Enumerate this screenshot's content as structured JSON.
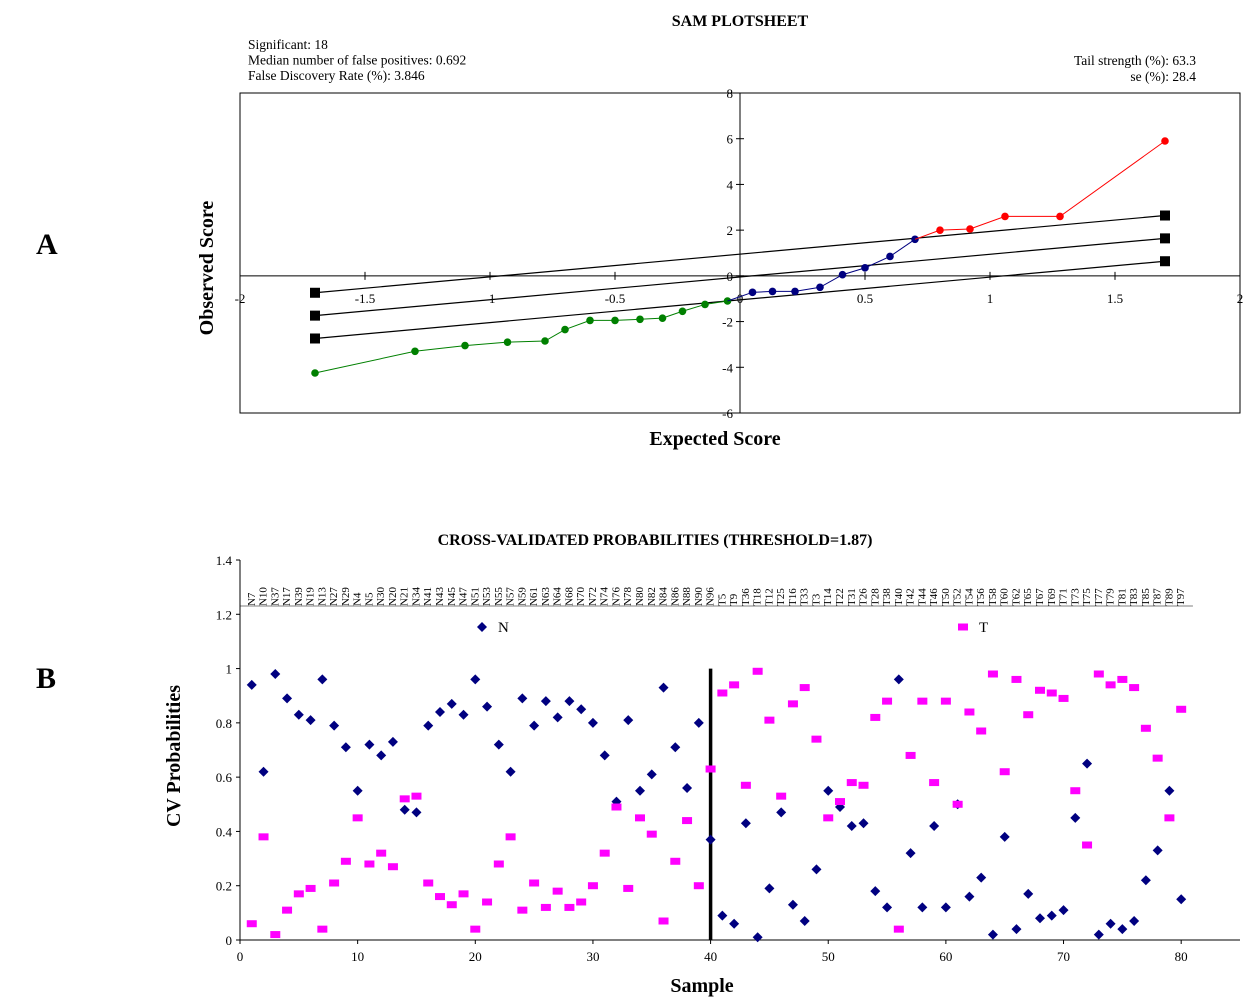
{
  "panel_a_label": "A",
  "panel_b_label": "B",
  "chart_data": [
    {
      "type": "scatter",
      "title": "SAM PLOTSHEET",
      "xlabel": "Expected Score",
      "ylabel": "Observed Score",
      "xlim": [
        -2,
        2
      ],
      "ylim": [
        -6,
        8
      ],
      "x_ticks": [
        -2,
        -1.5,
        -1,
        -0.5,
        0,
        0.5,
        1,
        1.5,
        2
      ],
      "x_tick_labels": [
        "-2",
        "-1.5",
        "-1",
        "-0.5",
        "0",
        "0.5",
        "1",
        "1.5",
        "2"
      ],
      "y_ticks": [
        8,
        6,
        4,
        2,
        0,
        -2,
        -4,
        -6
      ],
      "y_tick_labels": [
        "8",
        "6",
        "4",
        "2",
        "0",
        "-2",
        "-4",
        "-6"
      ],
      "stats_left": [
        "Significant: 18",
        "Median number of false positives: 0.692",
        "False Discovery Rate (%): 3.846"
      ],
      "stats_right": [
        "Tail strength (%): 63.3",
        "se (%): 28.4"
      ],
      "series": [
        {
          "color": "#008000",
          "points": [
            [
              -1.7,
              -4.25
            ],
            [
              -1.3,
              -3.3
            ],
            [
              -1.1,
              -3.05
            ],
            [
              -0.93,
              -2.9
            ],
            [
              -0.78,
              -2.85
            ],
            [
              -0.7,
              -2.35
            ],
            [
              -0.6,
              -1.95
            ],
            [
              -0.5,
              -1.95
            ],
            [
              -0.4,
              -1.9
            ],
            [
              -0.31,
              -1.85
            ],
            [
              -0.23,
              -1.55
            ],
            [
              -0.14,
              -1.25
            ],
            [
              -0.05,
              -1.1
            ]
          ]
        },
        {
          "color": "#000080",
          "points": [
            [
              0.05,
              -0.72
            ],
            [
              0.13,
              -0.68
            ],
            [
              0.22,
              -0.68
            ],
            [
              0.32,
              -0.5
            ],
            [
              0.41,
              0.05
            ],
            [
              0.5,
              0.35
            ],
            [
              0.6,
              0.85
            ],
            [
              0.7,
              1.6
            ]
          ]
        },
        {
          "color": "#ff0000",
          "points": [
            [
              0.8,
              2.0
            ],
            [
              0.92,
              2.05
            ],
            [
              1.06,
              2.6
            ],
            [
              1.28,
              2.6
            ],
            [
              1.7,
              5.9
            ]
          ]
        }
      ],
      "reference_lines": [
        {
          "x": [
            -1.7,
            1.7
          ],
          "y": [
            -0.74,
            2.64
          ]
        },
        {
          "x": [
            -1.7,
            1.7
          ],
          "y": [
            -1.74,
            1.64
          ]
        },
        {
          "x": [
            -1.7,
            1.7
          ],
          "y": [
            -2.74,
            0.64
          ]
        }
      ],
      "colors": {
        "negative": "#008000",
        "null": "#000080",
        "positive": "#ff0000",
        "lines": "#000000"
      }
    },
    {
      "type": "scatter",
      "title": "CROSS-VALIDATED PROBABILITIES (THRESHOLD=1.87)",
      "xlabel": "Sample",
      "ylabel": "CV Probabilities",
      "xlim": [
        0,
        85
      ],
      "ylim": [
        0,
        1.4
      ],
      "x_ticks": [
        0,
        10,
        20,
        30,
        40,
        50,
        60,
        70,
        80
      ],
      "x_tick_labels": [
        "0",
        "10",
        "20",
        "30",
        "40",
        "50",
        "60",
        "70",
        "80"
      ],
      "y_ticks": [
        0,
        0.2,
        0.4,
        0.6,
        0.8,
        1,
        1.2,
        1.4
      ],
      "y_tick_labels": [
        "0",
        "0.2",
        "0.4",
        "0.6",
        "0.8",
        "1",
        "1.2",
        "1.4"
      ],
      "divider_x": 40,
      "sample_labels": [
        "N7",
        "N10",
        "N37",
        "N17",
        "N39",
        "N19",
        "N13",
        "N27",
        "N29",
        "N4",
        "N5",
        "N30",
        "N20",
        "N21",
        "N34",
        "N41",
        "N43",
        "N45",
        "N47",
        "N51",
        "N53",
        "N55",
        "N57",
        "N59",
        "N61",
        "N63",
        "N64",
        "N68",
        "N70",
        "N72",
        "N74",
        "N76",
        "N78",
        "N80",
        "N82",
        "N84",
        "N86",
        "N88",
        "N90",
        "N96",
        "T5",
        "T9",
        "T36",
        "T18",
        "T12",
        "T25",
        "T16",
        "T33",
        "T3",
        "T14",
        "T22",
        "T31",
        "T26",
        "T28",
        "T38",
        "T40",
        "T42",
        "T44",
        "T46",
        "T50",
        "T52",
        "T54",
        "T56",
        "T58",
        "T60",
        "T62",
        "T65",
        "T67",
        "T69",
        "T71",
        "T73",
        "T75",
        "T77",
        "T79",
        "T81",
        "T83",
        "T85",
        "T87",
        "T89",
        "T97"
      ],
      "series": [
        {
          "name": "N",
          "color": "#000080",
          "marker": "diamond",
          "values": [
            0.94,
            0.62,
            0.98,
            0.89,
            0.83,
            0.81,
            0.96,
            0.79,
            0.71,
            0.55,
            0.72,
            0.68,
            0.73,
            0.48,
            0.47,
            0.79,
            0.84,
            0.87,
            0.83,
            0.96,
            0.86,
            0.72,
            0.62,
            0.89,
            0.79,
            0.88,
            0.82,
            0.88,
            0.85,
            0.8,
            0.68,
            0.51,
            0.81,
            0.55,
            0.61,
            0.93,
            0.71,
            0.56,
            0.8,
            0.37,
            0.09,
            0.06,
            0.43,
            0.01,
            0.19,
            0.47,
            0.13,
            0.07,
            0.26,
            0.55,
            0.49,
            0.42,
            0.43,
            0.18,
            0.12,
            0.96,
            0.32,
            0.12,
            0.42,
            0.12,
            0.5,
            0.16,
            0.23,
            0.02,
            0.38,
            0.04,
            0.17,
            0.08,
            0.09,
            0.11,
            0.45,
            0.65,
            0.02,
            0.06,
            0.04,
            0.07,
            0.22,
            0.33,
            0.55,
            0.15
          ]
        },
        {
          "name": "T",
          "color": "#ff00ff",
          "marker": "square",
          "values": [
            0.06,
            0.38,
            0.02,
            0.11,
            0.17,
            0.19,
            0.04,
            0.21,
            0.29,
            0.45,
            0.28,
            0.32,
            0.27,
            0.52,
            0.53,
            0.21,
            0.16,
            0.13,
            0.17,
            0.04,
            0.14,
            0.28,
            0.38,
            0.11,
            0.21,
            0.12,
            0.18,
            0.12,
            0.14,
            0.2,
            0.32,
            0.49,
            0.19,
            0.45,
            0.39,
            0.07,
            0.29,
            0.44,
            0.2,
            0.63,
            0.91,
            0.94,
            0.57,
            0.99,
            0.81,
            0.53,
            0.87,
            0.93,
            0.74,
            0.45,
            0.51,
            0.58,
            0.57,
            0.82,
            0.88,
            0.04,
            0.68,
            0.88,
            0.58,
            0.88,
            0.5,
            0.84,
            0.77,
            0.98,
            0.62,
            0.96,
            0.83,
            0.92,
            0.91,
            0.89,
            0.55,
            0.35,
            0.98,
            0.94,
            0.96,
            0.93,
            0.78,
            0.67,
            0.45,
            0.85
          ]
        }
      ],
      "colors": {
        "N": "#000080",
        "T": "#ff00ff",
        "divider": "#000000"
      }
    }
  ]
}
